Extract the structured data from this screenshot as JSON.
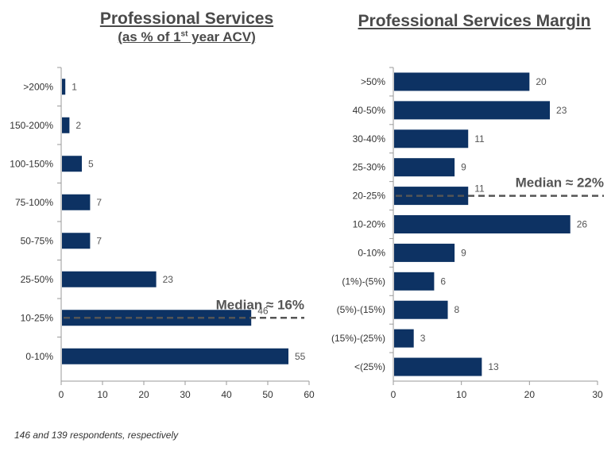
{
  "chart_data": [
    {
      "type": "bar",
      "orientation": "horizontal",
      "title": "Professional Services",
      "subtitle_prefix": "(as % of 1",
      "subtitle_sup": "st",
      "subtitle_suffix": " year ACV)",
      "categories": [
        ">200%",
        "150-200%",
        "100-150%",
        "75-100%",
        "50-75%",
        "25-50%",
        "10-25%",
        "0-10%"
      ],
      "values": [
        1,
        2,
        5,
        7,
        7,
        23,
        46,
        55
      ],
      "xlim": [
        0,
        60
      ],
      "ticks": [
        0,
        10,
        20,
        30,
        40,
        50,
        60
      ],
      "median_label": "Median ≈ 16%",
      "median_category": "10-25%",
      "bar_color": "#0d3263",
      "grid": false
    },
    {
      "type": "bar",
      "orientation": "horizontal",
      "title": "Professional Services Margin",
      "categories": [
        ">50%",
        "40-50%",
        "30-40%",
        "25-30%",
        "20-25%",
        "10-20%",
        "0-10%",
        "(1%)-(5%)",
        "(5%)-(15%)",
        "(15%)-(25%)",
        "<(25%)"
      ],
      "values": [
        20,
        23,
        11,
        9,
        11,
        26,
        9,
        6,
        8,
        3,
        13
      ],
      "xlim": [
        0,
        30
      ],
      "ticks": [
        0,
        10,
        20,
        30
      ],
      "median_label": "Median ≈ 22%",
      "median_category": "20-25%",
      "bar_color": "#0d3263",
      "grid": false
    }
  ],
  "footnote": "146 and 139 respondents, respectively"
}
